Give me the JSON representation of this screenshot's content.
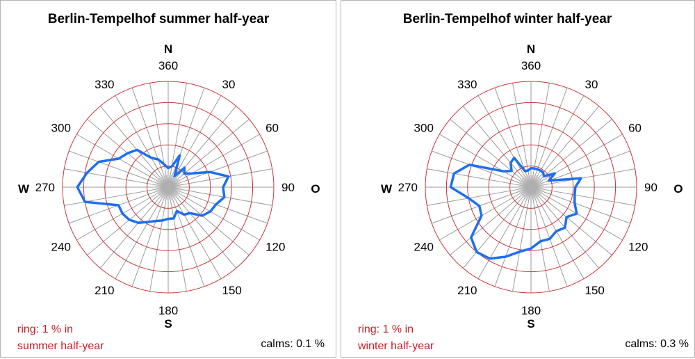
{
  "chart_data": [
    {
      "type": "radar",
      "title": "Berlin-Tempelhof summer half-year",
      "directions": [
        0,
        10,
        20,
        30,
        40,
        50,
        60,
        70,
        80,
        90,
        100,
        110,
        120,
        130,
        140,
        150,
        160,
        170,
        180,
        190,
        200,
        210,
        220,
        230,
        240,
        250,
        260,
        270,
        280,
        290,
        300,
        310,
        320,
        330,
        340,
        350
      ],
      "values": [
        0.9,
        1.0,
        1.6,
        0.6,
        1.2,
        1.0,
        1.3,
        2.1,
        2.9,
        2.6,
        2.7,
        2.4,
        2.3,
        2.1,
        1.6,
        1.5,
        1.2,
        1.5,
        1.5,
        1.6,
        1.7,
        1.9,
        2.2,
        2.4,
        2.5,
        2.5,
        4.0,
        4.3,
        3.9,
        3.5,
        2.7,
        2.5,
        2.3,
        1.6,
        1.4,
        1.1
      ],
      "rings_percent": [
        1,
        2,
        3,
        4,
        5
      ],
      "tick_labels": [
        "360",
        "30",
        "60",
        "90",
        "120",
        "150",
        "180",
        "210",
        "240",
        "270",
        "300",
        "330"
      ],
      "cardinals": {
        "N": "N",
        "O": "O",
        "S": "S",
        "W": "W"
      },
      "note": [
        "ring: 1 % in",
        "summer half-year"
      ],
      "calms": "calms:  0.1 %"
    },
    {
      "type": "radar",
      "title": "Berlin-Tempelhof winter half-year",
      "directions": [
        0,
        10,
        20,
        30,
        40,
        50,
        60,
        70,
        80,
        90,
        100,
        110,
        120,
        130,
        140,
        150,
        160,
        170,
        180,
        190,
        200,
        210,
        220,
        230,
        240,
        250,
        260,
        270,
        280,
        290,
        300,
        310,
        320,
        330,
        340,
        350
      ],
      "values": [
        0.9,
        0.9,
        0.9,
        0.9,
        0.9,
        0.8,
        1.3,
        0.9,
        2.4,
        2.1,
        2.1,
        2.2,
        2.5,
        2.2,
        2.5,
        2.4,
        2.6,
        2.6,
        2.9,
        3.1,
        3.5,
        3.9,
        4.0,
        3.7,
        2.7,
        2.6,
        3.0,
        3.8,
        3.7,
        3.1,
        1.5,
        1.2,
        1.5,
        1.6,
        0.8,
        0.8
      ],
      "rings_percent": [
        1,
        2,
        3,
        4,
        5
      ],
      "tick_labels": [
        "360",
        "30",
        "60",
        "90",
        "120",
        "150",
        "180",
        "210",
        "240",
        "270",
        "300",
        "330"
      ],
      "cardinals": {
        "N": "N",
        "O": "O",
        "S": "S",
        "W": "W"
      },
      "note": [
        "ring: 1 % in",
        "winter half-year"
      ],
      "calms": "calms:  0.3 %"
    }
  ],
  "colors": {
    "ring": "#c8353b",
    "spoke": "#9a9a9a",
    "series": "#1e6ff0",
    "note": "#c0212a"
  }
}
